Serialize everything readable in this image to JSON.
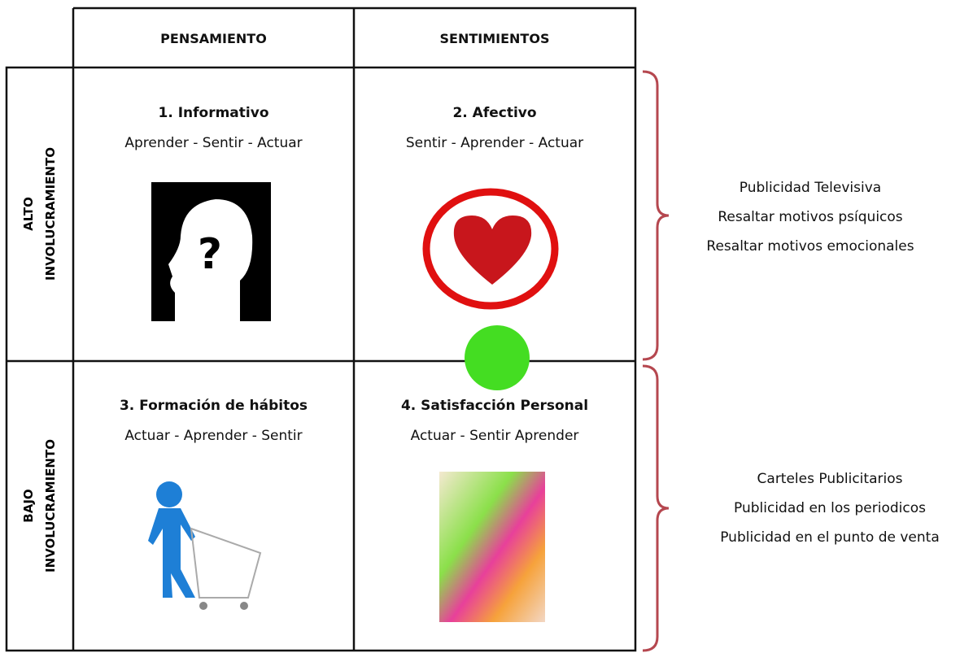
{
  "columns": [
    "PENSAMIENTO",
    "SENTIMIENTOS"
  ],
  "rows": [
    {
      "label": [
        "ALTO",
        "INVOLUCRAMIENTO"
      ]
    },
    {
      "label": [
        "BAJO",
        "INVOLUCRAMIENTO"
      ]
    }
  ],
  "cells": [
    {
      "title": "1. Informativo",
      "subtitle": "Aprender - Sentir - Actuar"
    },
    {
      "title": "2. Afectivo",
      "subtitle": "Sentir - Aprender - Actuar"
    },
    {
      "title": "3. Formación de hábitos",
      "subtitle": "Actuar - Aprender - Sentir"
    },
    {
      "title": "4. Satisfacción Personal",
      "subtitle": "Actuar - Sentir Aprender"
    }
  ],
  "notes": [
    [
      "Publicidad Televisiva",
      "Resaltar motivos psíquicos",
      "Resaltar motivos emocionales"
    ],
    [
      "Carteles Publicitarios",
      "Publicidad en los periodicos",
      "Publicidad en el punto de venta"
    ]
  ]
}
